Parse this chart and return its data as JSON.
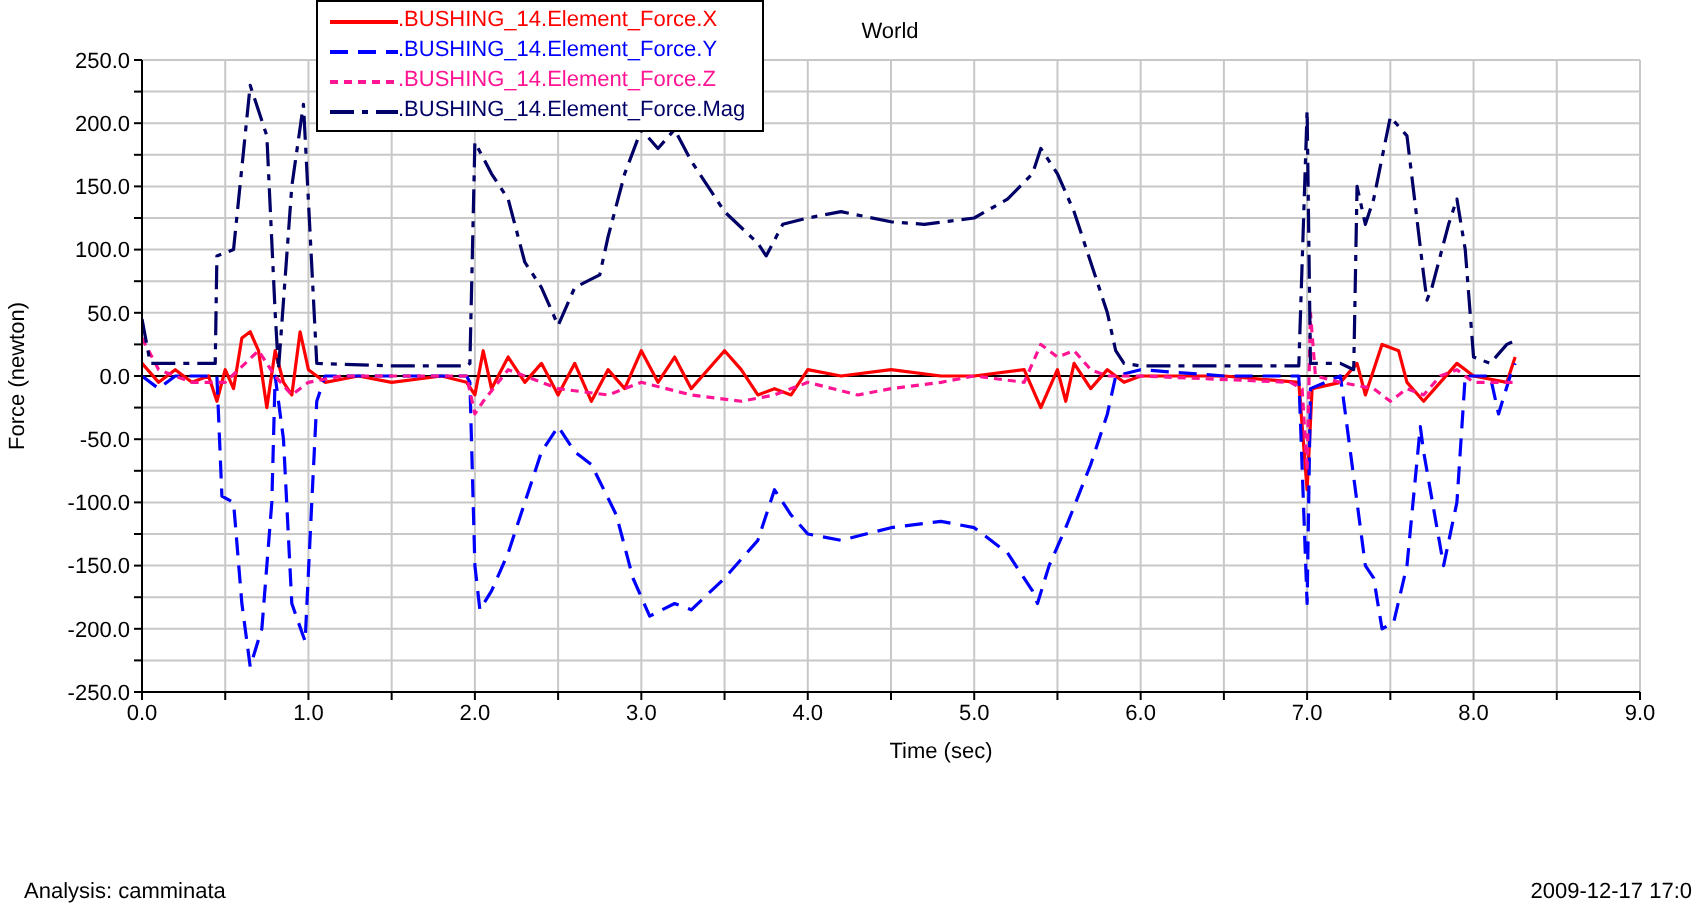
{
  "chart_data": {
    "type": "line",
    "title": "World",
    "xlabel": "Time (sec)",
    "ylabel": "Force (newton)",
    "annotations": [
      "Analysis:  camminata",
      "2009-12-17 17:0"
    ],
    "xlim": [
      0,
      9
    ],
    "ylim": [
      -250,
      250
    ],
    "xticks": [
      {
        "value": 0,
        "label": "0.0"
      },
      {
        "value": 0.5,
        "label": null
      },
      {
        "value": 1,
        "label": "1.0"
      },
      {
        "value": 1.5,
        "label": null
      },
      {
        "value": 2,
        "label": "2.0"
      },
      {
        "value": 2.5,
        "label": null
      },
      {
        "value": 3,
        "label": "3.0"
      },
      {
        "value": 3.5,
        "label": null
      },
      {
        "value": 4,
        "label": "4.0"
      },
      {
        "value": 4.5,
        "label": null
      },
      {
        "value": 5,
        "label": "5.0"
      },
      {
        "value": 5.5,
        "label": null
      },
      {
        "value": 6,
        "label": "6.0"
      },
      {
        "value": 6.5,
        "label": null
      },
      {
        "value": 7,
        "label": "7.0"
      },
      {
        "value": 7.5,
        "label": null
      },
      {
        "value": 8,
        "label": "8.0"
      },
      {
        "value": 8.5,
        "label": null
      },
      {
        "value": 9,
        "label": "9.0"
      }
    ],
    "yticks": [
      {
        "value": -250,
        "label": "-250.0"
      },
      {
        "value": -225,
        "label": null
      },
      {
        "value": -200,
        "label": "-200.0"
      },
      {
        "value": -175,
        "label": null
      },
      {
        "value": -150,
        "label": "-150.0"
      },
      {
        "value": -125,
        "label": null
      },
      {
        "value": -100,
        "label": "-100.0"
      },
      {
        "value": -75,
        "label": null
      },
      {
        "value": -50,
        "label": "-50.0"
      },
      {
        "value": -25,
        "label": null
      },
      {
        "value": 0,
        "label": "0.0"
      },
      {
        "value": 25,
        "label": null
      },
      {
        "value": 50,
        "label": "50.0"
      },
      {
        "value": 75,
        "label": null
      },
      {
        "value": 100,
        "label": "100.0"
      },
      {
        "value": 125,
        "label": null
      },
      {
        "value": 150,
        "label": "150.0"
      },
      {
        "value": 175,
        "label": null
      },
      {
        "value": 200,
        "label": "200.0"
      },
      {
        "value": 225,
        "label": null
      },
      {
        "value": 250,
        "label": "250.0"
      }
    ],
    "grid": true,
    "legend": "top left",
    "marker": "none",
    "ref_lines": [
      {
        "axis": "y",
        "value": 0,
        "color": "#000000"
      }
    ],
    "series": [
      {
        "name": ".BUSHING_14.Element_Force.X",
        "color": "#ff0000",
        "line_style": "solid",
        "x": [
          0,
          0.1,
          0.2,
          0.3,
          0.4,
          0.45,
          0.5,
          0.55,
          0.6,
          0.65,
          0.7,
          0.75,
          0.8,
          0.85,
          0.9,
          0.95,
          1.0,
          1.1,
          1.3,
          1.5,
          1.8,
          1.95,
          2.0,
          2.05,
          2.1,
          2.2,
          2.3,
          2.4,
          2.5,
          2.6,
          2.7,
          2.8,
          2.9,
          3.0,
          3.1,
          3.2,
          3.3,
          3.5,
          3.6,
          3.7,
          3.8,
          3.9,
          4.0,
          4.2,
          4.5,
          4.8,
          5.0,
          5.3,
          5.4,
          5.45,
          5.5,
          5.55,
          5.6,
          5.7,
          5.8,
          5.9,
          6.0,
          6.5,
          6.95,
          7.0,
          7.03,
          7.2,
          7.3,
          7.35,
          7.45,
          7.55,
          7.6,
          7.7,
          7.8,
          7.9,
          8.0,
          8.2,
          8.25
        ],
        "values": [
          10,
          -5,
          5,
          -5,
          0,
          -20,
          5,
          -10,
          30,
          35,
          20,
          -25,
          20,
          -5,
          -15,
          35,
          5,
          -5,
          0,
          -5,
          0,
          -5,
          -15,
          20,
          -10,
          15,
          -5,
          10,
          -15,
          10,
          -20,
          5,
          -10,
          20,
          -5,
          15,
          -10,
          20,
          5,
          -15,
          -10,
          -15,
          5,
          0,
          5,
          0,
          0,
          5,
          -25,
          -10,
          5,
          -20,
          10,
          -10,
          5,
          -5,
          0,
          0,
          -5,
          -90,
          -10,
          -5,
          10,
          -15,
          25,
          20,
          -5,
          -20,
          -5,
          10,
          0,
          -5,
          15
        ]
      },
      {
        "name": ".BUSHING_14.Element_Force.Y",
        "color": "#0000ff",
        "line_style": "dashed",
        "x": [
          0,
          0.1,
          0.2,
          0.45,
          0.48,
          0.55,
          0.6,
          0.65,
          0.72,
          0.78,
          0.8,
          0.85,
          0.9,
          0.98,
          1.02,
          1.05,
          1.1,
          1.5,
          1.95,
          1.97,
          2.0,
          2.03,
          2.1,
          2.2,
          2.3,
          2.4,
          2.5,
          2.6,
          2.7,
          2.85,
          2.95,
          3.05,
          3.2,
          3.3,
          3.5,
          3.7,
          3.8,
          3.9,
          4.0,
          4.2,
          4.5,
          4.8,
          5.0,
          5.2,
          5.35,
          5.38,
          5.45,
          5.55,
          5.7,
          5.8,
          5.85,
          6.0,
          6.5,
          6.95,
          7.0,
          7.02,
          7.2,
          7.3,
          7.35,
          7.4,
          7.45,
          7.52,
          7.6,
          7.68,
          7.7,
          7.78,
          7.82,
          7.9,
          7.95,
          8.1,
          8.15,
          8.22,
          8.25
        ],
        "values": [
          0,
          -10,
          0,
          0,
          -95,
          -100,
          -180,
          -230,
          -200,
          -100,
          0,
          -50,
          -180,
          -210,
          -100,
          -20,
          0,
          0,
          0,
          -5,
          -150,
          -185,
          -170,
          -140,
          -100,
          -60,
          -40,
          -60,
          -70,
          -110,
          -160,
          -190,
          -180,
          -185,
          -160,
          -130,
          -90,
          -110,
          -125,
          -130,
          -120,
          -115,
          -120,
          -140,
          -170,
          -180,
          -150,
          -120,
          -70,
          -30,
          0,
          5,
          0,
          0,
          -180,
          -10,
          0,
          -100,
          -150,
          -160,
          -200,
          -195,
          -150,
          -40,
          -60,
          -120,
          -150,
          -100,
          0,
          0,
          -30,
          0,
          10
        ]
      },
      {
        "name": ".BUSHING_14.Element_Force.Z",
        "color": "#ff1493",
        "line_style": "dotted",
        "x": [
          0,
          0.1,
          0.3,
          0.5,
          0.7,
          0.8,
          0.9,
          1.0,
          1.2,
          1.6,
          1.95,
          2.0,
          2.05,
          2.2,
          2.5,
          2.8,
          3.0,
          3.3,
          3.6,
          3.8,
          4.0,
          4.3,
          4.5,
          4.8,
          5.0,
          5.3,
          5.4,
          5.5,
          5.6,
          5.7,
          5.8,
          6.0,
          6.9,
          6.97,
          7.0,
          7.02,
          7.05,
          7.2,
          7.4,
          7.5,
          7.6,
          7.7,
          7.8,
          7.9,
          8.0,
          8.25
        ],
        "values": [
          30,
          5,
          -5,
          -5,
          20,
          0,
          -15,
          -5,
          0,
          0,
          0,
          -30,
          -20,
          5,
          -10,
          -15,
          -5,
          -15,
          -20,
          -15,
          -5,
          -15,
          -10,
          -5,
          0,
          -5,
          25,
          15,
          20,
          5,
          0,
          0,
          -5,
          -10,
          -75,
          50,
          0,
          -5,
          -10,
          -20,
          -10,
          -15,
          0,
          5,
          -5,
          -5
        ]
      },
      {
        "name": ".BUSHING_14.Element_Force.Mag",
        "color": "#000066",
        "line_style": "dashdot",
        "x": [
          0,
          0.05,
          0.2,
          0.44,
          0.45,
          0.55,
          0.65,
          0.75,
          0.8,
          0.82,
          0.9,
          0.97,
          1.05,
          1.5,
          1.95,
          1.97,
          2.0,
          2.1,
          2.2,
          2.3,
          2.4,
          2.5,
          2.6,
          2.75,
          2.8,
          2.9,
          3.0,
          3.1,
          3.2,
          3.3,
          3.4,
          3.5,
          3.7,
          3.75,
          3.85,
          4.0,
          4.2,
          4.5,
          4.7,
          5.0,
          5.2,
          5.35,
          5.4,
          5.5,
          5.6,
          5.7,
          5.8,
          5.85,
          5.9,
          6.0,
          6.5,
          6.95,
          7.0,
          7.02,
          7.2,
          7.28,
          7.3,
          7.35,
          7.4,
          7.5,
          7.6,
          7.7,
          7.72,
          7.75,
          7.85,
          7.9,
          7.95,
          8.0,
          8.1,
          8.2,
          8.25
        ],
        "values": [
          45,
          10,
          10,
          10,
          95,
          100,
          230,
          190,
          50,
          5,
          150,
          215,
          10,
          8,
          8,
          10,
          185,
          160,
          140,
          90,
          70,
          40,
          70,
          80,
          110,
          160,
          195,
          180,
          195,
          170,
          150,
          130,
          105,
          95,
          120,
          125,
          130,
          122,
          120,
          125,
          140,
          160,
          180,
          160,
          130,
          90,
          50,
          20,
          10,
          8,
          8,
          8,
          210,
          10,
          10,
          5,
          150,
          120,
          140,
          205,
          190,
          80,
          60,
          70,
          120,
          140,
          100,
          15,
          10,
          25,
          28
        ]
      }
    ]
  }
}
